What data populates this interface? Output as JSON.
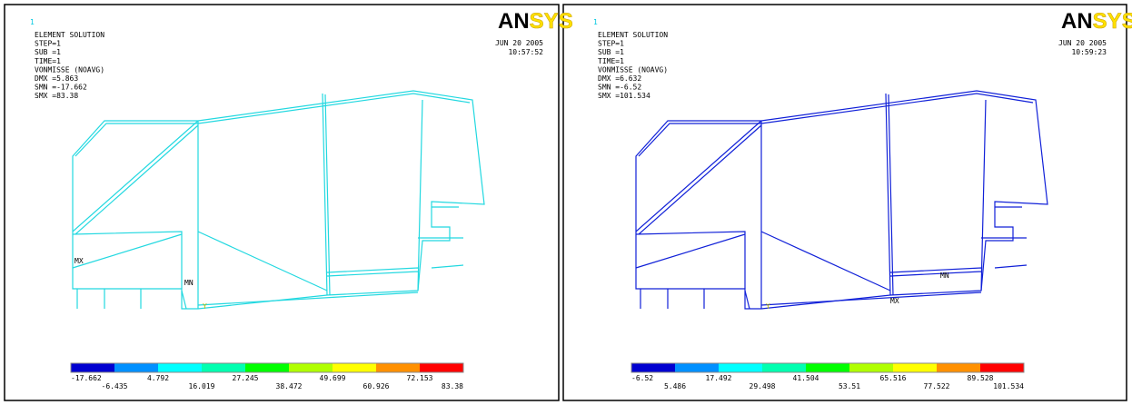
{
  "panels": [
    {
      "window_number": "1",
      "logo": [
        "AN",
        "SYS"
      ],
      "header": [
        "ELEMENT SOLUTION",
        "STEP=1",
        "SUB =1",
        "TIME=1",
        "VONMISSE (NOAVG)",
        "DMX =5.863",
        "SMN =-17.662",
        "SMX =83.38"
      ],
      "date": "JUN 20 2005",
      "time": "10:57:52",
      "frame_color": "#22d8e0",
      "markers": {
        "max": "MX",
        "min": "MN",
        "axis": "Y"
      },
      "legend_colors": [
        "#0000d0",
        "#0090ff",
        "#00ffff",
        "#00ffb0",
        "#00ff00",
        "#b0ff00",
        "#ffff00",
        "#ff9000",
        "#ff0000"
      ],
      "legend_labels": [
        "-17.662",
        "-6.435",
        "4.792",
        "16.019",
        "27.245",
        "38.472",
        "49.699",
        "60.926",
        "72.153",
        "83.38"
      ]
    },
    {
      "window_number": "1",
      "logo": [
        "AN",
        "SYS"
      ],
      "header": [
        "ELEMENT SOLUTION",
        "STEP=1",
        "SUB =1",
        "TIME=1",
        "VONMISSE (NOAVG)",
        "DMX =6.632",
        "SMN =-6.52",
        "SMX =101.534"
      ],
      "date": "JUN 20 2005",
      "time": "10:59:23",
      "frame_color": "#1020d8",
      "markers": {
        "max": "MX",
        "min": "MN",
        "axis": "Y"
      },
      "legend_colors": [
        "#0000d0",
        "#0090ff",
        "#00ffff",
        "#00ffb0",
        "#00ff00",
        "#b0ff00",
        "#ffff00",
        "#ff9000",
        "#ff0000"
      ],
      "legend_labels": [
        "-6.52",
        "5.486",
        "17.492",
        "29.498",
        "41.504",
        "53.51",
        "65.516",
        "77.522",
        "89.528",
        "101.534"
      ]
    }
  ]
}
